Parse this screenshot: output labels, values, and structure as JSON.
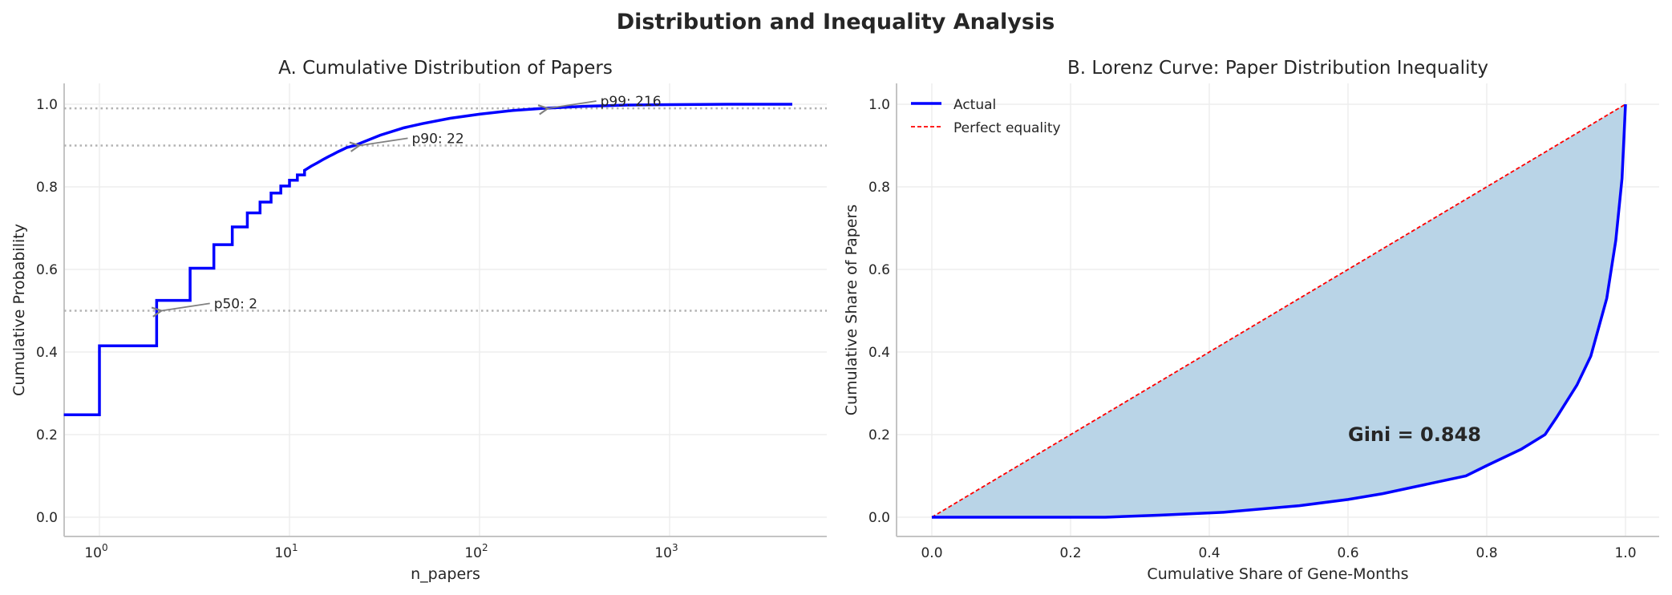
{
  "suptitle": "Distribution and Inequality Analysis",
  "chart_data": [
    {
      "type": "line",
      "title": "A. Cumulative Distribution of Papers",
      "xlabel": "n_papers",
      "ylabel": "Cumulative Probability",
      "xscale": "log",
      "xlim": [
        0.65,
        6800
      ],
      "ylim": [
        -0.05,
        1.05
      ],
      "xticks": [
        1,
        10,
        100,
        1000
      ],
      "xtick_labels": [
        {
          "base": "10",
          "exp": "0"
        },
        {
          "base": "10",
          "exp": "1"
        },
        {
          "base": "10",
          "exp": "2"
        },
        {
          "base": "10",
          "exp": "3"
        }
      ],
      "yticks": [
        "0.0",
        "0.2",
        "0.4",
        "0.6",
        "0.8",
        "1.0"
      ],
      "grid": true,
      "line_color": "#0000ff",
      "series": [
        {
          "step": true,
          "points": [
            [
              0.65,
              0.248
            ],
            [
              1,
              0.415
            ],
            [
              2,
              0.525
            ],
            [
              3,
              0.603
            ],
            [
              4,
              0.66
            ],
            [
              5,
              0.703
            ],
            [
              6,
              0.737
            ],
            [
              7,
              0.763
            ],
            [
              8,
              0.785
            ],
            [
              9,
              0.802
            ],
            [
              10,
              0.816
            ],
            [
              11,
              0.829
            ],
            [
              12,
              0.84
            ],
            [
              13,
              0.85
            ],
            [
              14,
              0.858
            ],
            [
              15,
              0.866
            ],
            [
              16,
              0.873
            ],
            [
              17,
              0.879
            ],
            [
              18,
              0.885
            ],
            [
              19,
              0.89
            ],
            [
              20,
              0.895
            ],
            [
              22,
              0.9
            ],
            [
              30,
              0.925
            ],
            [
              40,
              0.943
            ],
            [
              50,
              0.953
            ],
            [
              70,
              0.966
            ],
            [
              100,
              0.976
            ],
            [
              150,
              0.985
            ],
            [
              216,
              0.99
            ],
            [
              350,
              0.995
            ],
            [
              600,
              0.998
            ],
            [
              1000,
              0.999
            ],
            [
              2000,
              1.0
            ],
            [
              4420,
              1.0
            ]
          ]
        }
      ],
      "reference_lines": [
        0.5,
        0.9,
        0.99
      ],
      "annotations": [
        {
          "text": "p50: 2",
          "x": 2,
          "y": 0.5,
          "text_x": 4,
          "text_y": 0.51
        },
        {
          "text": "p90: 22",
          "x": 22,
          "y": 0.9,
          "text_x": 44,
          "text_y": 0.91
        },
        {
          "text": "p99: 216",
          "x": 216,
          "y": 0.99,
          "text_x": 432,
          "text_y": 1.0
        }
      ]
    },
    {
      "type": "area",
      "title": "B. Lorenz Curve: Paper Distribution Inequality",
      "xlabel": "Cumulative Share of Gene-Months",
      "ylabel": "Cumulative Share of Papers",
      "xlim": [
        -0.05,
        1.05
      ],
      "ylim": [
        -0.05,
        1.05
      ],
      "xticks": [
        "0.0",
        "0.2",
        "0.4",
        "0.6",
        "0.8",
        "1.0"
      ],
      "yticks": [
        "0.0",
        "0.2",
        "0.4",
        "0.6",
        "0.8",
        "1.0"
      ],
      "grid": true,
      "legend": "top-left",
      "fill_color": "#b9d4e7",
      "series": [
        {
          "name": "Actual",
          "color": "#0000ff",
          "style": "solid",
          "points": [
            [
              0,
              0
            ],
            [
              0.25,
              0
            ],
            [
              0.33,
              0.005
            ],
            [
              0.42,
              0.012
            ],
            [
              0.53,
              0.028
            ],
            [
              0.6,
              0.043
            ],
            [
              0.65,
              0.057
            ],
            [
              0.7,
              0.075
            ],
            [
              0.77,
              0.1
            ],
            [
              0.8,
              0.125
            ],
            [
              0.85,
              0.165
            ],
            [
              0.884,
              0.2
            ],
            [
              0.9,
              0.24
            ],
            [
              0.93,
              0.32
            ],
            [
              0.95,
              0.39
            ],
            [
              0.973,
              0.53
            ],
            [
              0.986,
              0.67
            ],
            [
              0.995,
              0.82
            ],
            [
              1,
              1
            ]
          ]
        },
        {
          "name": "Perfect equality",
          "color": "#ff0000",
          "style": "dashed",
          "points": [
            [
              0,
              0
            ],
            [
              1,
              1
            ]
          ]
        }
      ],
      "annotations": [
        {
          "text": "Gini = 0.848",
          "x": 0.6,
          "y": 0.2
        }
      ]
    }
  ]
}
